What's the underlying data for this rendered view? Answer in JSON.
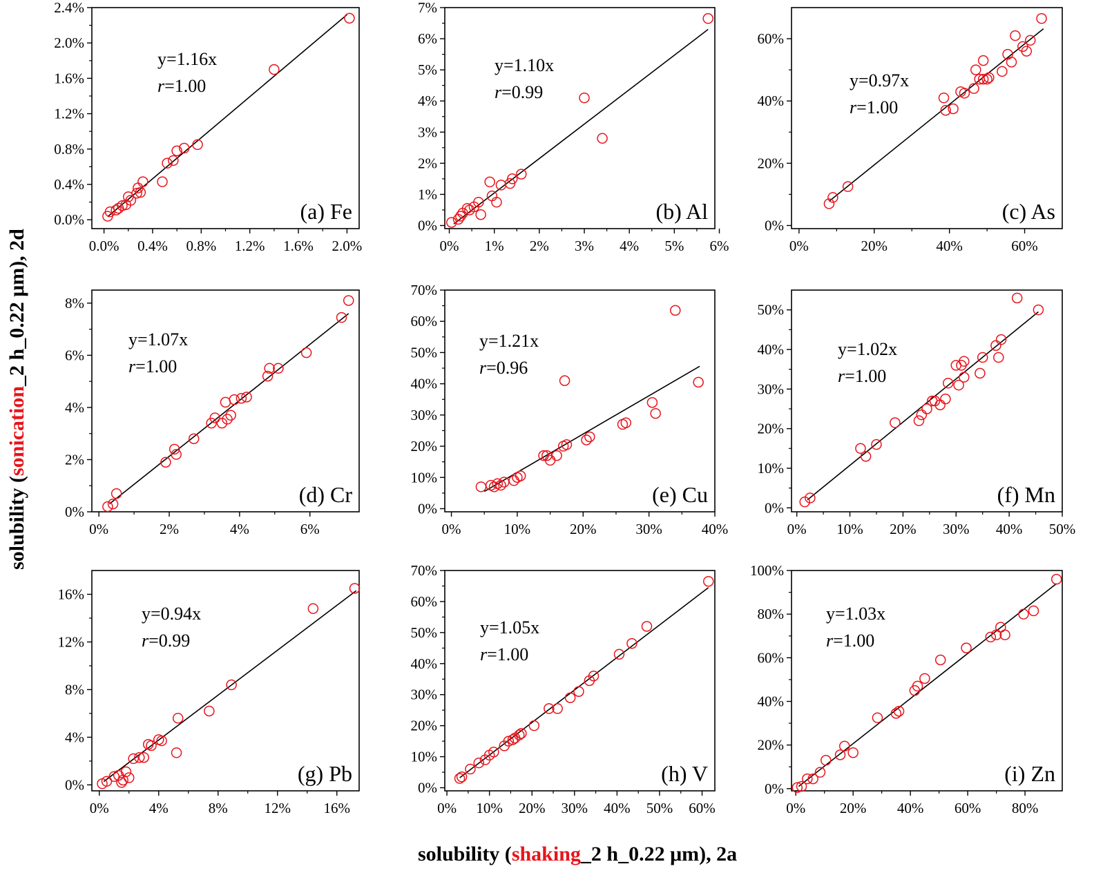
{
  "figure": {
    "ylabel_parts": [
      "solubility (",
      "sonication",
      "_2 h_0.22 μm), 2d"
    ],
    "xlabel_parts": [
      "solubility (",
      "shaking",
      "_2 h_0.22 μm), 2a"
    ],
    "highlight_color": "#e8141b",
    "marker_color": "#e8141b",
    "fit_line_color": "#000000"
  },
  "chart_data": [
    {
      "type": "scatter",
      "label": "(a) Fe",
      "equation": "y=1.16x",
      "r_prefix": "r",
      "r_value": "=1.00",
      "xlim": [
        -0.1,
        2.1
      ],
      "ylim": [
        -0.1,
        2.4
      ],
      "xticks": [
        0,
        0.4,
        0.8,
        1.2,
        1.6,
        2.0
      ],
      "xtick_labels": [
        "0.0%",
        "0.4%",
        "0.8%",
        "1.2%",
        "1.6%",
        "2.0%"
      ],
      "yticks": [
        0,
        0.4,
        0.8,
        1.2,
        1.6,
        2.0,
        2.4
      ],
      "ytick_labels": [
        "0.0%",
        "0.4%",
        "0.8%",
        "1.2%",
        "1.6%",
        "2.0%",
        "2.4%"
      ],
      "fit_line": [
        [
          0.03,
          0.035
        ],
        [
          2.0,
          2.32
        ]
      ],
      "points": [
        [
          0.03,
          0.04
        ],
        [
          0.05,
          0.09
        ],
        [
          0.1,
          0.11
        ],
        [
          0.12,
          0.13
        ],
        [
          0.15,
          0.16
        ],
        [
          0.18,
          0.17
        ],
        [
          0.2,
          0.26
        ],
        [
          0.22,
          0.22
        ],
        [
          0.27,
          0.3
        ],
        [
          0.28,
          0.36
        ],
        [
          0.3,
          0.31
        ],
        [
          0.32,
          0.43
        ],
        [
          0.48,
          0.43
        ],
        [
          0.52,
          0.64
        ],
        [
          0.57,
          0.67
        ],
        [
          0.6,
          0.78
        ],
        [
          0.66,
          0.81
        ],
        [
          0.77,
          0.85
        ],
        [
          1.4,
          1.7
        ],
        [
          2.02,
          2.28
        ]
      ]
    },
    {
      "type": "scatter",
      "label": "(b) Al",
      "equation": "y=1.10x",
      "r_prefix": "r",
      "r_value": "=0.99",
      "xlim": [
        -0.1,
        5.9
      ],
      "ylim": [
        -0.1,
        7.0
      ],
      "xticks": [
        0,
        1,
        2,
        3,
        4,
        5,
        6
      ],
      "xtick_labels": [
        "0%",
        "1%",
        "2%",
        "3%",
        "4%",
        "5%",
        "6%"
      ],
      "yticks": [
        0,
        1,
        2,
        3,
        4,
        5,
        6,
        7
      ],
      "ytick_labels": [
        "0%",
        "1%",
        "2%",
        "3%",
        "4%",
        "5%",
        "6%",
        "7%"
      ],
      "fit_line": [
        [
          0.1,
          0.05
        ],
        [
          5.75,
          6.3
        ]
      ],
      "points": [
        [
          0.05,
          0.1
        ],
        [
          0.2,
          0.2
        ],
        [
          0.25,
          0.3
        ],
        [
          0.3,
          0.4
        ],
        [
          0.4,
          0.55
        ],
        [
          0.45,
          0.5
        ],
        [
          0.55,
          0.6
        ],
        [
          0.65,
          0.75
        ],
        [
          0.7,
          0.35
        ],
        [
          0.9,
          1.4
        ],
        [
          0.95,
          0.95
        ],
        [
          1.05,
          0.75
        ],
        [
          1.15,
          1.3
        ],
        [
          1.35,
          1.35
        ],
        [
          1.4,
          1.5
        ],
        [
          1.6,
          1.65
        ],
        [
          3.0,
          4.1
        ],
        [
          3.4,
          2.8
        ],
        [
          5.75,
          6.65
        ]
      ]
    },
    {
      "type": "scatter",
      "label": "(c) As",
      "equation": "y=0.97x",
      "r_prefix": "r",
      "r_value": "=1.00",
      "xlim": [
        -2,
        70
      ],
      "ylim": [
        -1,
        70
      ],
      "xticks": [
        0,
        20,
        40,
        60
      ],
      "xtick_labels": [
        "0%",
        "20%",
        "40%",
        "60%"
      ],
      "yticks": [
        0,
        20,
        40,
        60
      ],
      "ytick_labels": [
        "0%",
        "20%",
        "40%",
        "60%"
      ],
      "fit_line": [
        [
          8,
          7.8
        ],
        [
          65,
          63.2
        ]
      ],
      "points": [
        [
          8,
          7
        ],
        [
          9,
          9
        ],
        [
          13,
          12.5
        ],
        [
          38.5,
          41
        ],
        [
          39,
          37
        ],
        [
          41,
          37.5
        ],
        [
          43,
          43
        ],
        [
          44,
          42.5
        ],
        [
          46.5,
          44
        ],
        [
          47,
          50
        ],
        [
          48,
          47
        ],
        [
          49,
          47
        ],
        [
          49,
          53
        ],
        [
          50,
          47
        ],
        [
          50.5,
          47.5
        ],
        [
          54,
          49.5
        ],
        [
          55.5,
          55
        ],
        [
          56.5,
          52.5
        ],
        [
          57.5,
          61
        ],
        [
          59.5,
          57.5
        ],
        [
          60.5,
          56
        ],
        [
          61.5,
          59.5
        ],
        [
          64.5,
          66.5
        ]
      ]
    },
    {
      "type": "scatter",
      "label": "(d) Cr",
      "equation": "y=1.07x",
      "r_prefix": "r",
      "r_value": "=1.00",
      "xlim": [
        -0.2,
        7.4
      ],
      "ylim": [
        0,
        8.5
      ],
      "xticks": [
        0,
        2,
        4,
        6
      ],
      "xtick_labels": [
        "0%",
        "2%",
        "4%",
        "6%"
      ],
      "yticks": [
        0,
        2,
        4,
        6,
        8
      ],
      "ytick_labels": [
        "0%",
        "2%",
        "4%",
        "6%",
        "8%"
      ],
      "fit_line": [
        [
          0.3,
          0.3
        ],
        [
          7.1,
          7.6
        ]
      ],
      "points": [
        [
          0.25,
          0.2
        ],
        [
          0.4,
          0.3
        ],
        [
          0.5,
          0.7
        ],
        [
          1.9,
          1.9
        ],
        [
          2.15,
          2.4
        ],
        [
          2.2,
          2.2
        ],
        [
          2.7,
          2.8
        ],
        [
          3.2,
          3.4
        ],
        [
          3.3,
          3.6
        ],
        [
          3.5,
          3.4
        ],
        [
          3.6,
          4.2
        ],
        [
          3.65,
          3.55
        ],
        [
          3.75,
          3.7
        ],
        [
          3.85,
          4.3
        ],
        [
          4.05,
          4.35
        ],
        [
          4.2,
          4.4
        ],
        [
          4.8,
          5.2
        ],
        [
          4.85,
          5.5
        ],
        [
          5.1,
          5.5
        ],
        [
          5.9,
          6.1
        ],
        [
          6.9,
          7.45
        ],
        [
          7.1,
          8.1
        ]
      ]
    },
    {
      "type": "scatter",
      "label": "(e) Cu",
      "equation": "y=1.21x",
      "r_prefix": "r",
      "r_value": "=0.96",
      "xlim": [
        -1,
        40
      ],
      "ylim": [
        -1,
        70
      ],
      "xticks": [
        0,
        10,
        20,
        30,
        40
      ],
      "xtick_labels": [
        "0%",
        "10%",
        "20%",
        "30%",
        "40%"
      ],
      "yticks": [
        0,
        10,
        20,
        30,
        40,
        50,
        60,
        70
      ],
      "ytick_labels": [
        "0%",
        "10%",
        "20%",
        "30%",
        "40%",
        "50%",
        "60%",
        "70%"
      ],
      "fit_line": [
        [
          5,
          5.5
        ],
        [
          37.7,
          45.6
        ]
      ],
      "points": [
        [
          4.5,
          7
        ],
        [
          6,
          7.5
        ],
        [
          6.5,
          7
        ],
        [
          7,
          8
        ],
        [
          7.5,
          7.5
        ],
        [
          8,
          8.5
        ],
        [
          9.5,
          9
        ],
        [
          10,
          10
        ],
        [
          10.5,
          10.5
        ],
        [
          14,
          17
        ],
        [
          14.5,
          17
        ],
        [
          15,
          15.5
        ],
        [
          16,
          17
        ],
        [
          17,
          20
        ],
        [
          17.5,
          20.5
        ],
        [
          20.5,
          22
        ],
        [
          21,
          23
        ],
        [
          17.2,
          41
        ],
        [
          26,
          27
        ],
        [
          26.5,
          27.5
        ],
        [
          30.5,
          34
        ],
        [
          31,
          30.5
        ],
        [
          34,
          63.5
        ],
        [
          37.5,
          40.5
        ]
      ]
    },
    {
      "type": "scatter",
      "label": "(f) Mn",
      "equation": "y=1.02x",
      "r_prefix": "r",
      "r_value": "=1.00",
      "xlim": [
        -1,
        50
      ],
      "ylim": [
        -1,
        55
      ],
      "xticks": [
        0,
        10,
        20,
        30,
        40,
        50
      ],
      "xtick_labels": [
        "0%",
        "10%",
        "20%",
        "30%",
        "40%",
        "50%"
      ],
      "yticks": [
        0,
        10,
        20,
        30,
        40,
        50
      ],
      "ytick_labels": [
        "0%",
        "10%",
        "20%",
        "30%",
        "40%",
        "50%"
      ],
      "fit_line": [
        [
          2,
          2
        ],
        [
          45.5,
          49.5
        ]
      ],
      "points": [
        [
          1.5,
          1.5
        ],
        [
          2.5,
          2.5
        ],
        [
          12,
          15
        ],
        [
          13,
          13
        ],
        [
          15,
          16
        ],
        [
          18.5,
          21.5
        ],
        [
          23,
          22
        ],
        [
          23.5,
          23.5
        ],
        [
          24.5,
          25
        ],
        [
          25.5,
          27
        ],
        [
          26,
          27
        ],
        [
          27,
          26
        ],
        [
          28,
          27.5
        ],
        [
          28.5,
          31.5
        ],
        [
          30,
          36
        ],
        [
          30.5,
          31
        ],
        [
          31,
          36
        ],
        [
          31.5,
          37
        ],
        [
          31.5,
          33
        ],
        [
          34.5,
          34
        ],
        [
          35,
          38
        ],
        [
          37.5,
          41
        ],
        [
          38,
          38
        ],
        [
          38.5,
          42.5
        ],
        [
          41.5,
          53
        ],
        [
          45.5,
          50
        ]
      ]
    },
    {
      "type": "scatter",
      "label": "(g) Pb",
      "equation": "y=0.94x",
      "r_prefix": "r",
      "r_value": "=0.99",
      "xlim": [
        -0.5,
        17.5
      ],
      "ylim": [
        -0.5,
        18
      ],
      "xticks": [
        0,
        4,
        8,
        12,
        16
      ],
      "xtick_labels": [
        "0%",
        "4%",
        "8%",
        "12%",
        "16%"
      ],
      "yticks": [
        0,
        4,
        8,
        12,
        16
      ],
      "ytick_labels": [
        "0%",
        "4%",
        "8%",
        "12%",
        "16%"
      ],
      "fit_line": [
        [
          0.3,
          0.28
        ],
        [
          17.3,
          16.3
        ]
      ],
      "points": [
        [
          0.2,
          0.1
        ],
        [
          0.5,
          0.3
        ],
        [
          1.0,
          0.7
        ],
        [
          1.3,
          0.8
        ],
        [
          1.5,
          0.2
        ],
        [
          1.6,
          0.4
        ],
        [
          1.8,
          1.1
        ],
        [
          2.0,
          0.6
        ],
        [
          2.3,
          2.2
        ],
        [
          2.7,
          2.3
        ],
        [
          3.0,
          2.3
        ],
        [
          3.3,
          3.4
        ],
        [
          3.5,
          3.3
        ],
        [
          4.0,
          3.8
        ],
        [
          4.2,
          3.7
        ],
        [
          5.2,
          2.7
        ],
        [
          5.3,
          5.6
        ],
        [
          7.4,
          6.2
        ],
        [
          8.9,
          8.4
        ],
        [
          14.4,
          14.8
        ],
        [
          17.2,
          16.5
        ]
      ]
    },
    {
      "type": "scatter",
      "label": "(h) V",
      "equation": "y=1.05x",
      "r_prefix": "r",
      "r_value": "=1.00",
      "xlim": [
        -0.5,
        63
      ],
      "ylim": [
        -1,
        70
      ],
      "xticks": [
        0,
        10,
        20,
        30,
        40,
        50,
        60
      ],
      "xtick_labels": [
        "0%",
        "10%",
        "20%",
        "30%",
        "40%",
        "50%",
        "60%"
      ],
      "yticks": [
        0,
        10,
        20,
        30,
        40,
        50,
        60,
        70
      ],
      "ytick_labels": [
        "0%",
        "10%",
        "20%",
        "30%",
        "40%",
        "50%",
        "60%",
        "70%"
      ],
      "fit_line": [
        [
          3,
          3.2
        ],
        [
          61.5,
          64.5
        ]
      ],
      "points": [
        [
          3,
          3
        ],
        [
          3.5,
          3.5
        ],
        [
          5.5,
          6
        ],
        [
          7.5,
          8
        ],
        [
          9,
          9
        ],
        [
          10,
          10.5
        ],
        [
          11,
          11.5
        ],
        [
          13.5,
          13.5
        ],
        [
          14.5,
          15
        ],
        [
          15.5,
          15.5
        ],
        [
          16,
          16
        ],
        [
          17,
          17
        ],
        [
          17.5,
          17.5
        ],
        [
          20.5,
          20
        ],
        [
          24,
          25.5
        ],
        [
          26,
          25.5
        ],
        [
          29,
          29
        ],
        [
          31,
          31
        ],
        [
          33.5,
          34.5
        ],
        [
          34.5,
          36
        ],
        [
          40.5,
          43
        ],
        [
          43.5,
          46.5
        ],
        [
          47,
          52
        ],
        [
          61.5,
          66.5
        ]
      ]
    },
    {
      "type": "scatter",
      "label": "(i) Zn",
      "equation": "y=1.03x",
      "r_prefix": "r",
      "r_value": "=1.00",
      "xlim": [
        -1.5,
        93
      ],
      "ylim": [
        -1,
        100
      ],
      "xticks": [
        0,
        20,
        40,
        60,
        80
      ],
      "xtick_labels": [
        "0%",
        "20%",
        "40%",
        "60%",
        "80%"
      ],
      "yticks": [
        0,
        20,
        40,
        60,
        80,
        100
      ],
      "ytick_labels": [
        "0%",
        "20%",
        "40%",
        "60%",
        "80%",
        "100%"
      ],
      "fit_line": [
        [
          1,
          1
        ],
        [
          91,
          94
        ]
      ],
      "points": [
        [
          0.5,
          0.5
        ],
        [
          2,
          1
        ],
        [
          4,
          4.5
        ],
        [
          6,
          4.5
        ],
        [
          8.5,
          7.5
        ],
        [
          10.5,
          13
        ],
        [
          15.5,
          15.5
        ],
        [
          17,
          19.5
        ],
        [
          20,
          16.5
        ],
        [
          28.5,
          32.5
        ],
        [
          35,
          34.5
        ],
        [
          36,
          35.5
        ],
        [
          41.5,
          45
        ],
        [
          42.5,
          47
        ],
        [
          45,
          50.5
        ],
        [
          50.5,
          59
        ],
        [
          59.5,
          64.5
        ],
        [
          68,
          69.5
        ],
        [
          70,
          70.5
        ],
        [
          71.5,
          74
        ],
        [
          73,
          70.5
        ],
        [
          79.5,
          80
        ],
        [
          83,
          81.5
        ],
        [
          91,
          96
        ]
      ]
    }
  ]
}
